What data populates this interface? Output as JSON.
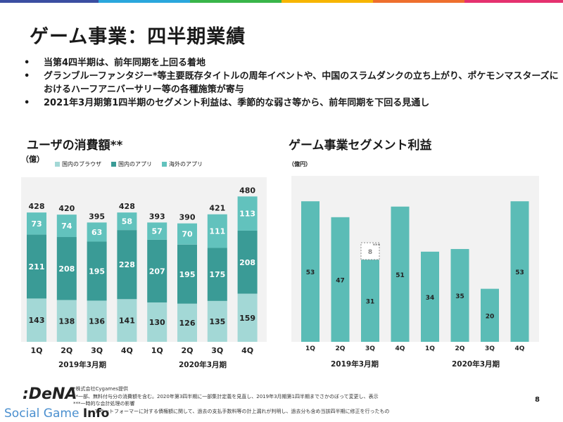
{
  "title": "ゲーム事業：四半期業績",
  "bullets": [
    "当第4四半期は、前年同期を上回る着地",
    "グランブルーファンタジー*等主要既存タイトルの周年イベントや、中国のスラムダンクの立ち上がり、ポケモンマスターズにおけるハーフアニバーサリー等の各種施策が寄与",
    "2021年3月期第1四半期のセグメント利益は、季節的な弱さ等から、前年同期を下回る見通し"
  ],
  "bullet_symbol": "•",
  "colors": {
    "browser": "#a3d8d6",
    "domestic_app": "#3a9b96",
    "overseas_app": "#62c2bd",
    "segment_bar": "#5bbcb6",
    "chart_bg": "#f2f2f2",
    "top_bar": [
      "#3b4ea1",
      "#2aa7dd",
      "#39b54a",
      "#f7b500",
      "#ee6f2d",
      "#e5316f"
    ]
  },
  "left_chart": {
    "heading": "ユーザの消費額**",
    "unit": "（億）",
    "year_labels": [
      "2019年3月期",
      "2020年3月期"
    ]
  },
  "right_chart": {
    "heading": "ゲーム事業セグメント利益",
    "unit": "（億円）",
    "year_labels": [
      "2019年3月期",
      "2020年3月期"
    ]
  },
  "chart_data": [
    {
      "type": "bar",
      "stacked": true,
      "title": "ユーザの消費額**",
      "ylabel": "（億）",
      "categories": [
        "1Q",
        "2Q",
        "3Q",
        "4Q",
        "1Q",
        "2Q",
        "3Q",
        "4Q"
      ],
      "groups": [
        "2019年3月期",
        "2020年3月期"
      ],
      "series": [
        {
          "name": "国内のブラウザ",
          "values": [
            143,
            138,
            136,
            141,
            130,
            126,
            135,
            159
          ]
        },
        {
          "name": "国内のアプリ",
          "values": [
            211,
            208,
            195,
            228,
            207,
            195,
            175,
            208
          ]
        },
        {
          "name": "海外のアプリ",
          "values": [
            73,
            74,
            63,
            58,
            57,
            70,
            111,
            113
          ]
        }
      ],
      "totals": [
        428,
        420,
        395,
        428,
        393,
        390,
        421,
        480
      ],
      "ylim": [
        0,
        480
      ],
      "legend": "top-left"
    },
    {
      "type": "bar",
      "title": "ゲーム事業セグメント利益",
      "ylabel": "（億円）",
      "categories": [
        "1Q",
        "2Q",
        "3Q",
        "4Q",
        "1Q",
        "2Q",
        "3Q",
        "4Q"
      ],
      "groups": [
        "2019年3月期",
        "2020年3月期"
      ],
      "values": [
        53,
        47,
        31,
        51,
        34,
        35,
        20,
        53
      ],
      "annotation": {
        "category_index": 2,
        "label": "8",
        "marker": "***"
      },
      "ylim": [
        0,
        55
      ],
      "grid": false
    }
  ],
  "footer": {
    "logo": ":DeNA",
    "watermark_prefix": "Social Game ",
    "watermark_suffix": "Info",
    "notes": [
      "*株式会社Cygames提供",
      "**一部、無料付与分の消費額を含む。2020年第3四半期に一部集計定義を見直し、2019年3月期第1四半期までさかのぼって変更し、表示",
      "***一時的な会計処理の影響",
      "プラットフォーマーに対する債権額に関して、過去の支払手数料等の計上漏れが判明し、過去分も含め当該四半期に修正を行ったもの"
    ],
    "page": "8"
  }
}
